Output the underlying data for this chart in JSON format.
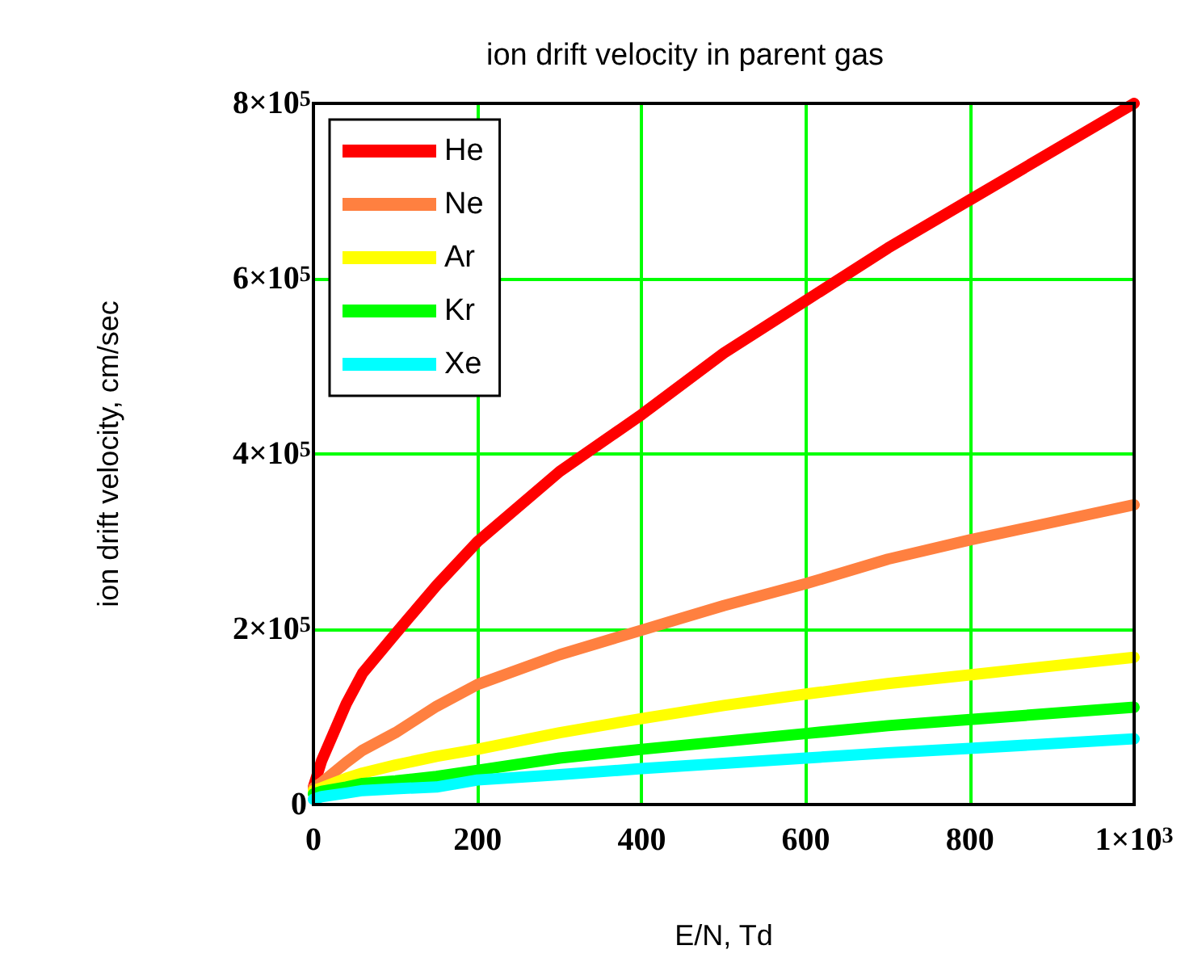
{
  "chart_data": {
    "type": "line",
    "title": "ion drift velocity in parent gas",
    "xlabel": "E/N, Td",
    "ylabel": "ion drift velocity, cm/sec",
    "x": [
      0,
      10,
      40,
      60,
      100,
      150,
      200,
      300,
      400,
      500,
      600,
      700,
      800,
      1000
    ],
    "series": [
      {
        "name": "He",
        "color": "#ff0000",
        "values": [
          20000,
          50000,
          115000,
          150000,
          195000,
          250000,
          300000,
          380000,
          445000,
          515000,
          575000,
          635000,
          690000,
          800000
        ]
      },
      {
        "name": "Ne",
        "color": "#ff8040",
        "values": [
          19000,
          25000,
          48000,
          62000,
          82000,
          112000,
          137000,
          171000,
          199000,
          227000,
          252000,
          280000,
          302000,
          342000
        ]
      },
      {
        "name": "Ar",
        "color": "#ffff00",
        "values": [
          16000,
          19000,
          30000,
          36000,
          45000,
          55000,
          63000,
          82000,
          98000,
          113000,
          126000,
          138000,
          148000,
          168000
        ]
      },
      {
        "name": "Kr",
        "color": "#00ff00",
        "values": [
          12000,
          15000,
          20000,
          24000,
          27000,
          32000,
          39000,
          53000,
          63000,
          72000,
          81000,
          90000,
          97000,
          111000
        ]
      },
      {
        "name": "Xe",
        "color": "#00ffff",
        "values": [
          6000,
          9000,
          13000,
          16000,
          18000,
          20000,
          28000,
          34000,
          41000,
          47000,
          53000,
          59000,
          64000,
          75000
        ]
      }
    ],
    "xlim": [
      0,
      1000
    ],
    "xticks": [
      0,
      200,
      400,
      600,
      800,
      {
        "value": 1000,
        "label": "1×10$^{3}$"
      }
    ],
    "ylim": [
      0,
      800000
    ],
    "yticks": [
      0,
      {
        "value": 200000,
        "label": "2×10$^{5}$"
      },
      {
        "value": 400000,
        "label": "4×10$^{5}$"
      },
      {
        "value": 600000,
        "label": "6×10$^{5}$"
      },
      {
        "value": 800000,
        "label": "8×10$^{5}$"
      }
    ],
    "grid": true,
    "legend": "top left",
    "marker": "none",
    "line_style": "solid"
  }
}
